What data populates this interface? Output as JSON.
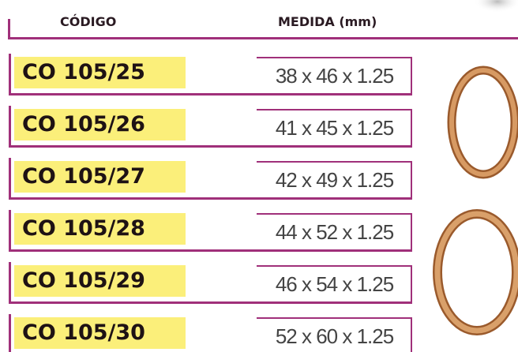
{
  "header": {
    "code": "CÓDIGO",
    "size": "MEDIDA (mm)"
  },
  "rows": [
    {
      "code": "CO 105/25",
      "size": "38 x 46 x 1.25"
    },
    {
      "code": "CO 105/26",
      "size": "41 x 45 x 1.25"
    },
    {
      "code": "CO 105/27",
      "size": "42 x 49 x 1.25"
    },
    {
      "code": "CO 105/28",
      "size": "44 x 52 x 1.25"
    },
    {
      "code": "CO 105/29",
      "size": "46 x 54 x 1.25"
    },
    {
      "code": "CO 105/30",
      "size": "52 x 60 x 1.25"
    }
  ]
}
